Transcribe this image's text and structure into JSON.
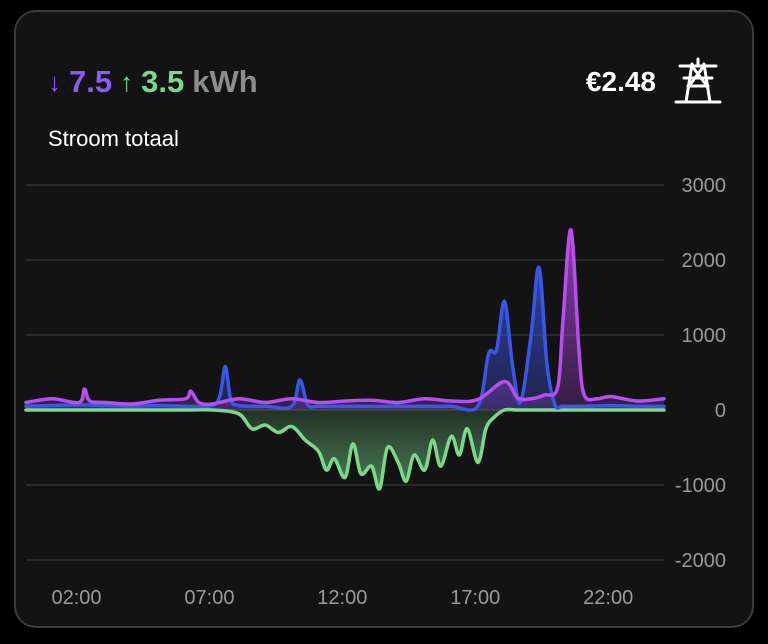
{
  "header": {
    "import_arrow": "↓",
    "import_value": "7.5",
    "export_arrow": "↑",
    "export_value": "3.5",
    "unit": "kWh",
    "price": "€2.48",
    "icon": "power-pylon-icon"
  },
  "subtitle": "Stroom totaal",
  "colors": {
    "import": "#8a5cf0",
    "export": "#7ad88a",
    "blue": "#3b55e6",
    "purple": "#b84ef0",
    "grid": "#333333",
    "tick": "#9a9a9a"
  },
  "chart_data": {
    "type": "area",
    "title": "",
    "xlabel": "",
    "ylabel": "",
    "x_ticks": [
      "02:00",
      "07:00",
      "12:00",
      "17:00",
      "22:00"
    ],
    "y_ticks": [
      "3000",
      "2000",
      "1000",
      "0",
      "-1000",
      "-2000"
    ],
    "ylim": [
      -2000,
      3000
    ],
    "x_range_hours": [
      0,
      24
    ],
    "grid": true,
    "series": [
      {
        "key": "green",
        "x": [
          0,
          1,
          2,
          3,
          4,
          5,
          6,
          7,
          8,
          8.5,
          9,
          9.5,
          10,
          10.5,
          11,
          11.3,
          11.6,
          12,
          12.3,
          12.6,
          13,
          13.3,
          13.6,
          14,
          14.3,
          14.6,
          15,
          15.3,
          15.6,
          16,
          16.3,
          16.6,
          17,
          17.3,
          17.6,
          18,
          18.5,
          19,
          20,
          21,
          22,
          23,
          24
        ],
        "y": [
          0,
          0,
          0,
          0,
          0,
          0,
          0,
          0,
          -50,
          -250,
          -200,
          -300,
          -220,
          -400,
          -550,
          -800,
          -650,
          -900,
          -450,
          -850,
          -750,
          -1050,
          -500,
          -700,
          -950,
          -600,
          -800,
          -400,
          -750,
          -350,
          -600,
          -250,
          -700,
          -250,
          -100,
          0,
          0,
          0,
          0,
          0,
          0,
          0,
          0
        ]
      },
      {
        "key": "blue",
        "x": [
          0,
          1,
          2,
          3,
          4,
          5,
          6,
          7,
          7.3,
          7.5,
          7.7,
          8,
          9,
          10,
          10.3,
          10.6,
          11,
          12,
          13,
          14,
          15,
          16,
          17,
          17.4,
          17.7,
          18,
          18.3,
          18.6,
          19,
          19.3,
          19.6,
          19.9,
          20.2,
          21,
          22,
          23,
          24
        ],
        "y": [
          50,
          60,
          70,
          60,
          50,
          60,
          50,
          60,
          200,
          580,
          150,
          60,
          50,
          50,
          400,
          70,
          50,
          50,
          50,
          50,
          50,
          50,
          50,
          750,
          800,
          1450,
          600,
          100,
          1000,
          1900,
          600,
          70,
          50,
          50,
          60,
          50,
          50
        ]
      },
      {
        "key": "purple",
        "x": [
          0,
          1,
          2,
          2.2,
          2.4,
          3,
          4,
          5,
          6,
          6.2,
          6.5,
          7,
          8,
          9,
          10,
          11,
          12,
          13,
          14,
          15,
          16,
          17,
          18,
          18.5,
          19,
          19.5,
          20,
          20.2,
          20.5,
          20.8,
          21,
          21.5,
          22,
          23,
          24
        ],
        "y": [
          100,
          150,
          100,
          280,
          120,
          100,
          80,
          130,
          150,
          250,
          100,
          80,
          150,
          100,
          150,
          100,
          120,
          130,
          100,
          150,
          120,
          140,
          380,
          160,
          150,
          200,
          300,
          1200,
          2400,
          800,
          200,
          150,
          180,
          120,
          150
        ]
      }
    ]
  }
}
